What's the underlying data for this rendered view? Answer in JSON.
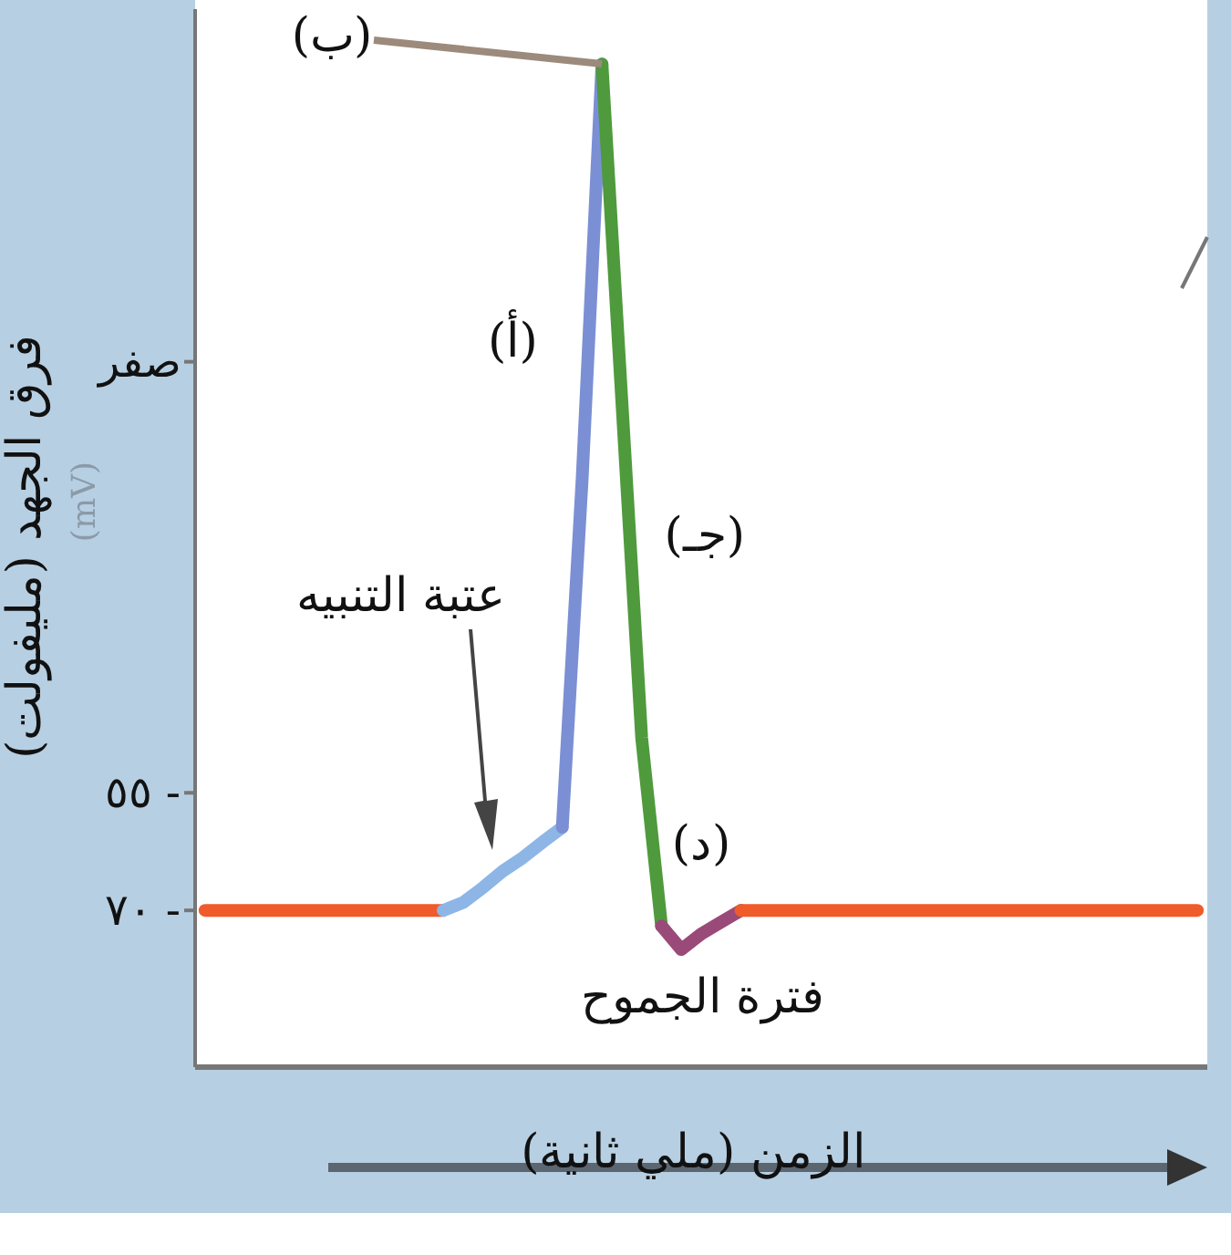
{
  "chart_data": {
    "type": "line",
    "ylabel": "فرق الجهد (مليفولت)",
    "xlabel": "الزمن (ملي ثانية)",
    "categories": [
      null,
      null,
      null,
      null,
      null,
      null,
      null,
      null,
      null,
      null,
      null,
      null,
      null,
      null,
      null,
      null,
      null,
      null,
      null,
      null,
      null,
      null,
      null,
      null,
      null,
      null,
      null,
      null,
      null,
      null,
      null,
      null,
      null,
      null,
      null,
      null,
      null,
      null,
      null,
      null,
      null,
      null,
      null,
      null,
      null,
      null,
      null,
      null,
      null,
      null,
      null
    ],
    "tick_labels": "y",
    "ylim": [
      -90,
      45
    ],
    "yticks": [
      {
        "value": -70,
        "label": "٧٠ -"
      },
      {
        "value": -55,
        "label": "٥٥ -"
      },
      {
        "value": 0,
        "label": "صفر"
      }
    ],
    "series": [
      {
        "color": "#ef5b2a",
        "values": [
          -70,
          -70,
          -70,
          -70,
          -70,
          -70,
          -70,
          -70,
          -70,
          -70,
          -70,
          -70,
          -70,
          null,
          null,
          null,
          null,
          null,
          null,
          null,
          null,
          null,
          null,
          null,
          null,
          null,
          null,
          null,
          null,
          null,
          null,
          null,
          null,
          null,
          null,
          null,
          null,
          null,
          null,
          null,
          null,
          null,
          null,
          null,
          null,
          null,
          null,
          null,
          null,
          null,
          null
        ]
      },
      {
        "color": "#8db6e6",
        "values": [
          null,
          null,
          null,
          null,
          null,
          null,
          null,
          null,
          null,
          null,
          null,
          null,
          -70,
          -69,
          -67.1,
          -65,
          -63.3,
          -61.3,
          -59.4,
          null,
          null,
          null,
          null,
          null,
          null,
          null,
          null,
          null,
          null,
          null,
          null,
          null,
          null,
          null,
          null,
          null,
          null,
          null,
          null,
          null,
          null,
          null,
          null,
          null,
          null,
          null,
          null,
          null,
          null,
          null,
          null
        ]
      },
      {
        "name": "(أ)",
        "color": "#7b8fd4",
        "values": [
          null,
          null,
          null,
          null,
          null,
          null,
          null,
          null,
          null,
          null,
          null,
          null,
          null,
          null,
          null,
          null,
          null,
          null,
          -59.4,
          -15,
          38,
          null,
          null,
          null,
          null,
          null,
          null,
          null,
          null,
          null,
          null,
          null,
          null,
          null,
          null,
          null,
          null,
          null,
          null,
          null,
          null,
          null,
          null,
          null,
          null,
          null,
          null,
          null,
          null,
          null,
          null
        ]
      },
      {
        "name": "(جـ)",
        "color": "#4f9a3c",
        "values": [
          null,
          null,
          null,
          null,
          null,
          null,
          null,
          null,
          null,
          null,
          null,
          null,
          null,
          null,
          null,
          null,
          null,
          null,
          null,
          null,
          38,
          -5,
          -48,
          -72,
          null,
          null,
          null,
          null,
          null,
          null,
          null,
          null,
          null,
          null,
          null,
          null,
          null,
          null,
          null,
          null,
          null,
          null,
          null,
          null,
          null,
          null,
          null,
          null,
          null,
          null,
          null
        ]
      },
      {
        "name": "(د)",
        "color": "#9a4a78",
        "values": [
          null,
          null,
          null,
          null,
          null,
          null,
          null,
          null,
          null,
          null,
          null,
          null,
          null,
          null,
          null,
          null,
          null,
          null,
          null,
          null,
          null,
          null,
          null,
          -72,
          -75,
          -73,
          -71.5,
          -70,
          null,
          null,
          null,
          null,
          null,
          null,
          null,
          null,
          null,
          null,
          null,
          null,
          null,
          null,
          null,
          null,
          null,
          null,
          null,
          null,
          null,
          null,
          null
        ]
      },
      {
        "color": "#ef5b2a",
        "values": [
          null,
          null,
          null,
          null,
          null,
          null,
          null,
          null,
          null,
          null,
          null,
          null,
          null,
          null,
          null,
          null,
          null,
          null,
          null,
          null,
          null,
          null,
          null,
          null,
          null,
          null,
          null,
          -70,
          -70,
          -70,
          -70,
          -70,
          -70,
          -70,
          -70,
          -70,
          -70,
          -70,
          -70,
          -70,
          -70,
          -70,
          -70,
          -70,
          -70,
          -70,
          -70,
          -70,
          -70,
          -70,
          -70
        ]
      }
    ],
    "marker": "none",
    "line_style": "solid",
    "annotations": [
      "(ب)",
      "عتبة التنبيه",
      "فترة الجموح",
      "(mV)"
    ]
  }
}
